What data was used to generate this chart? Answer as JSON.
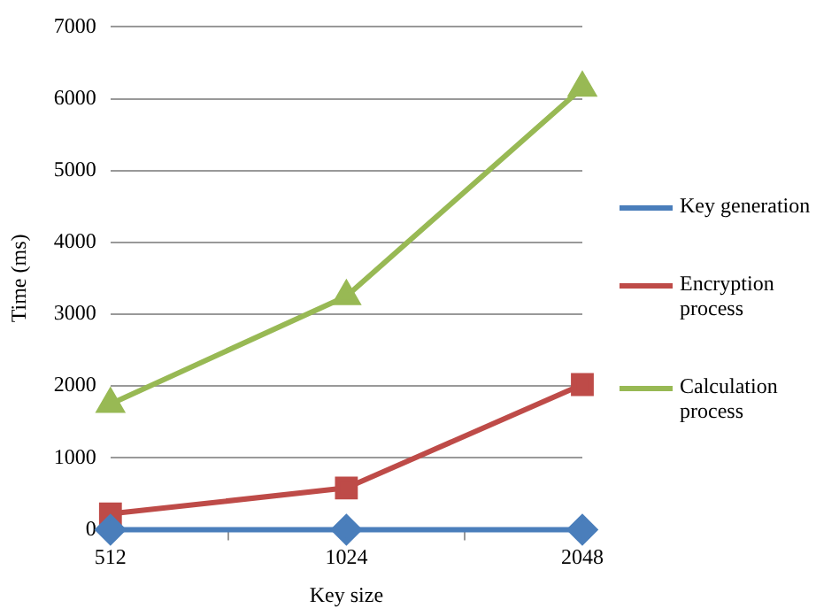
{
  "chart_data": {
    "type": "line",
    "xlabel": "Key size",
    "ylabel": "Time (ms)",
    "categories": [
      "512",
      "1024",
      "2048"
    ],
    "series": [
      {
        "name": "Key generation",
        "color": "#4a7ebb",
        "marker": "diamond",
        "values": [
          0,
          0,
          0
        ]
      },
      {
        "name": "Encryption process",
        "color": "#be4b48",
        "marker": "square",
        "values": [
          220,
          580,
          2020
        ]
      },
      {
        "name": "Calculation process",
        "color": "#98b954",
        "marker": "triangle",
        "values": [
          1750,
          3250,
          6150
        ]
      }
    ],
    "ylim": [
      0,
      7000
    ],
    "yticks": [
      0,
      1000,
      2000,
      3000,
      4000,
      5000,
      6000,
      7000
    ],
    "grid": "y",
    "legend": "right"
  }
}
